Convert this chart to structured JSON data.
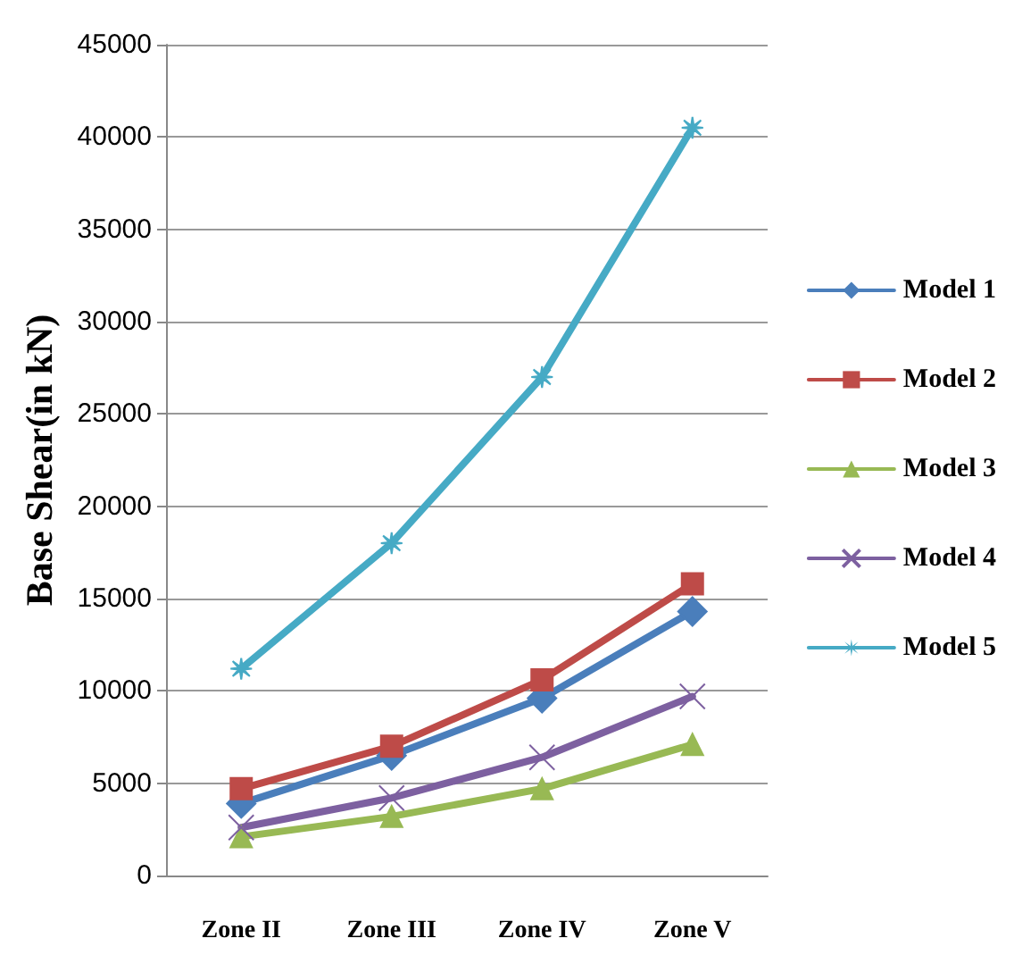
{
  "chart_data": {
    "type": "line",
    "ylabel": "Base Shear(in kN)",
    "categories": [
      "Zone II",
      "Zone III",
      "Zone IV",
      "Zone V"
    ],
    "series": [
      {
        "name": "Model 1",
        "color": "#4a7ebb",
        "marker": "diamond",
        "values": [
          3900,
          6500,
          9600,
          14300
        ]
      },
      {
        "name": "Model 2",
        "color": "#be4b48",
        "marker": "square",
        "values": [
          4700,
          7000,
          10600,
          15800
        ]
      },
      {
        "name": "Model 3",
        "color": "#98b954",
        "marker": "triangle",
        "values": [
          2100,
          3200,
          4700,
          7100
        ]
      },
      {
        "name": "Model 4",
        "color": "#7d60a0",
        "marker": "cross",
        "values": [
          2600,
          4200,
          6400,
          9700
        ]
      },
      {
        "name": "Model 5",
        "color": "#46aac5",
        "marker": "star",
        "values": [
          11200,
          18000,
          27000,
          40500
        ]
      }
    ],
    "ylim": [
      0,
      45000
    ],
    "yticks": [
      0,
      5000,
      10000,
      15000,
      20000,
      25000,
      30000,
      35000,
      40000,
      45000
    ],
    "grid": "y",
    "legend": "right"
  }
}
